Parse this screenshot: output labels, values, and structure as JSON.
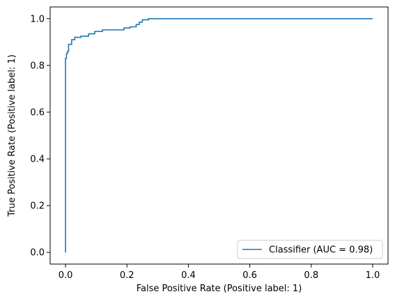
{
  "chart_data": {
    "type": "line",
    "title": "",
    "xlabel": "False Positive Rate (Positive label: 1)",
    "ylabel": "True Positive Rate (Positive label: 1)",
    "xlim": [
      -0.05,
      1.05
    ],
    "ylim": [
      -0.05,
      1.05
    ],
    "xticks": [
      0.0,
      0.2,
      0.4,
      0.6,
      0.8,
      1.0
    ],
    "yticks": [
      0.0,
      0.2,
      0.4,
      0.6,
      0.8,
      1.0
    ],
    "xtick_labels": [
      "0.0",
      "0.2",
      "0.4",
      "0.6",
      "0.8",
      "1.0"
    ],
    "ytick_labels": [
      "0.0",
      "0.2",
      "0.4",
      "0.6",
      "0.8",
      "1.0"
    ],
    "grid": false,
    "legend_position": "lower-right",
    "series": [
      {
        "name": "Classifier (AUC = 0.98)",
        "color": "#1f77b4",
        "step": true,
        "x": [
          0.0,
          0.0,
          0.003,
          0.003,
          0.006,
          0.006,
          0.01,
          0.01,
          0.02,
          0.02,
          0.03,
          0.03,
          0.05,
          0.05,
          0.075,
          0.075,
          0.095,
          0.095,
          0.12,
          0.12,
          0.19,
          0.19,
          0.21,
          0.21,
          0.23,
          0.23,
          0.24,
          0.24,
          0.25,
          0.25,
          0.27,
          0.27,
          1.0
        ],
        "y": [
          0.0,
          0.83,
          0.83,
          0.85,
          0.85,
          0.86,
          0.86,
          0.89,
          0.89,
          0.91,
          0.91,
          0.92,
          0.92,
          0.925,
          0.925,
          0.935,
          0.935,
          0.945,
          0.945,
          0.952,
          0.952,
          0.96,
          0.96,
          0.965,
          0.965,
          0.975,
          0.975,
          0.985,
          0.985,
          0.995,
          0.995,
          1.0,
          1.0
        ]
      }
    ]
  }
}
